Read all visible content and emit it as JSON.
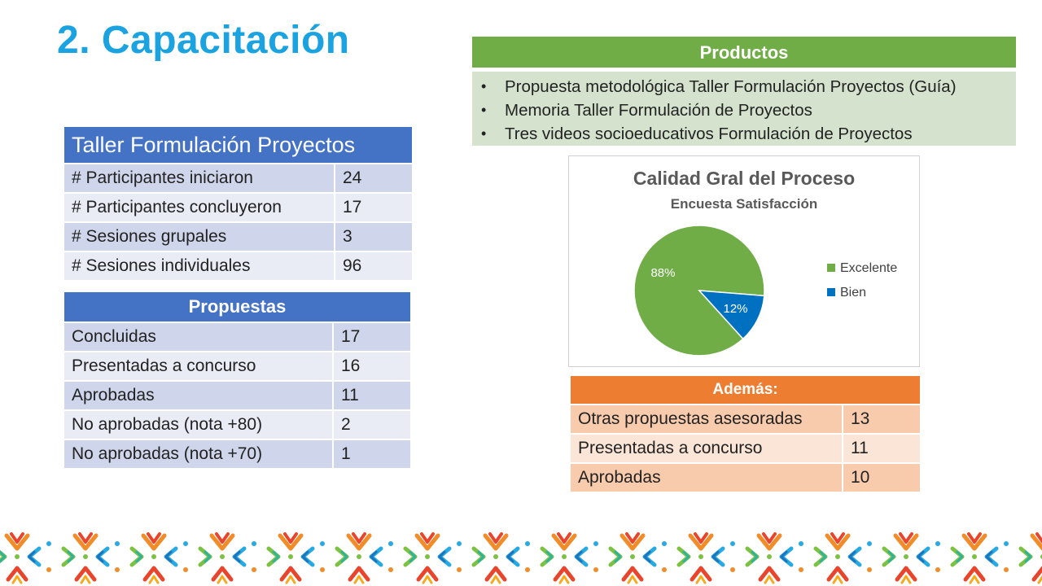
{
  "title": "2. Capacitación",
  "products": {
    "heading": "Productos",
    "items": [
      "Propuesta metodológica Taller Formulación Proyectos (Guía)",
      "Memoria Taller Formulación de Proyectos",
      "Tres videos socioeducativos Formulación de Proyectos"
    ]
  },
  "workshop": {
    "heading": "Taller Formulación Proyectos",
    "rows": [
      {
        "label": "# Participantes iniciaron",
        "value": "24"
      },
      {
        "label": "# Participantes concluyeron",
        "value": "17"
      },
      {
        "label": "# Sesiones grupales",
        "value": "3"
      },
      {
        "label": "# Sesiones individuales",
        "value": "96"
      }
    ]
  },
  "proposals": {
    "heading": "Propuestas",
    "rows": [
      {
        "label": "Concluidas",
        "value": "17"
      },
      {
        "label": "Presentadas a concurso",
        "value": "16"
      },
      {
        "label": "Aprobadas",
        "value": "11"
      },
      {
        "label": "No aprobadas (nota +80)",
        "value": "2"
      },
      {
        "label": "No aprobadas (nota +70)",
        "value": "1"
      }
    ]
  },
  "extra": {
    "heading": "Además:",
    "rows": [
      {
        "label": "Otras propuestas asesoradas",
        "value": "13"
      },
      {
        "label": "Presentadas a concurso",
        "value": "11"
      },
      {
        "label": "Aprobadas",
        "value": "10"
      }
    ]
  },
  "chart_data": {
    "type": "pie",
    "title": "Calidad Gral del Proceso",
    "subtitle": "Encuesta Satisfacción",
    "categories": [
      "Excelente",
      "Bien"
    ],
    "values": [
      88,
      12
    ],
    "data_labels": [
      "88%",
      "12%"
    ],
    "colors": [
      "#70ad47",
      "#0070c0"
    ],
    "legend": "right"
  },
  "colors": {
    "title": "#1aa3e0",
    "blue_header": "#4472c4",
    "green_header": "#70ad47",
    "orange_header": "#ed7d31"
  }
}
